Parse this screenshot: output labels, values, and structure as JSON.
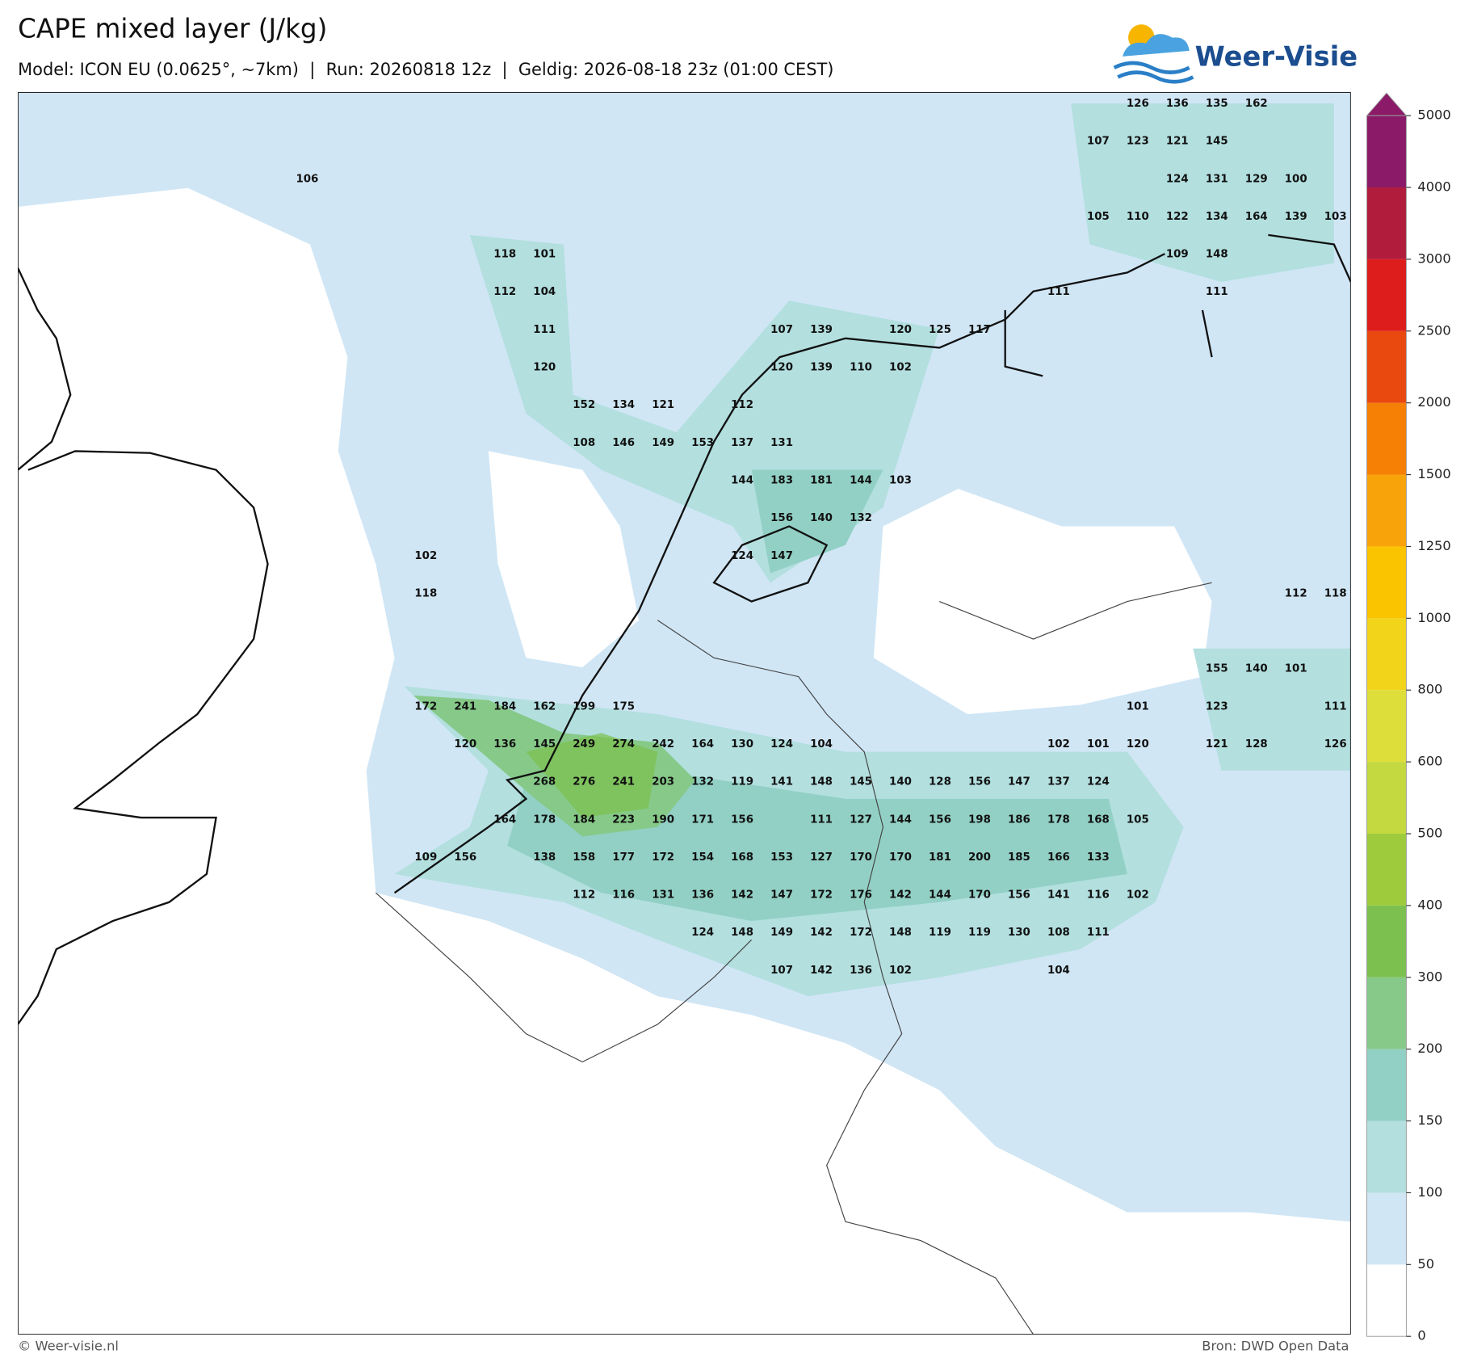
{
  "header": {
    "title": "CAPE mixed layer (J/kg)",
    "subtitle": "Model: ICON EU (0.0625°, ~7km)  |  Run: 20260818 12z  |  Geldig: 2026-08-18 23z (01:00 CEST)",
    "logo": "Weer-Visie"
  },
  "footer": {
    "left": "© Weer-visie.nl",
    "right": "Bron: DWD Open Data"
  },
  "colorbar": {
    "levels": [
      0,
      50,
      100,
      150,
      200,
      300,
      400,
      500,
      600,
      800,
      1000,
      1250,
      1500,
      2000,
      2500,
      3000,
      4000,
      5000
    ],
    "colors": [
      "#ffffff",
      "#d0e6f5",
      "#b3dfdf",
      "#92d0c5",
      "#86c988",
      "#7cc14f",
      "#9dcb3c",
      "#c3d93f",
      "#dede3a",
      "#f2d41a",
      "#fbc400",
      "#f9a30b",
      "#f67f06",
      "#e9480f",
      "#dd1c1c",
      "#b21c3c",
      "#8b1a68"
    ],
    "extend": "max"
  },
  "labels": [
    [
      null,
      null,
      null,
      null,
      null,
      null,
      null,
      null,
      null,
      null,
      null,
      null,
      null,
      null,
      null,
      null,
      null,
      null,
      null,
      null,
      null,
      126,
      136,
      135,
      162,
      null,
      null
    ],
    [
      null,
      null,
      null,
      null,
      null,
      null,
      null,
      null,
      null,
      null,
      null,
      null,
      null,
      null,
      null,
      null,
      null,
      null,
      null,
      null,
      107,
      123,
      121,
      145,
      null,
      null,
      null
    ],
    [
      106,
      null,
      null,
      null,
      null,
      null,
      null,
      null,
      null,
      null,
      null,
      null,
      null,
      null,
      null,
      null,
      null,
      null,
      null,
      null,
      null,
      null,
      124,
      131,
      129,
      100,
      null
    ],
    [
      null,
      null,
      null,
      null,
      null,
      null,
      null,
      null,
      null,
      null,
      null,
      null,
      null,
      null,
      null,
      null,
      null,
      null,
      null,
      null,
      105,
      110,
      122,
      134,
      164,
      139,
      103
    ],
    [
      null,
      null,
      null,
      null,
      null,
      118,
      101,
      null,
      null,
      null,
      null,
      null,
      null,
      null,
      null,
      null,
      null,
      null,
      null,
      null,
      null,
      null,
      109,
      148,
      null,
      null,
      null
    ],
    [
      null,
      null,
      null,
      null,
      null,
      112,
      104,
      null,
      null,
      null,
      null,
      null,
      null,
      null,
      null,
      null,
      null,
      null,
      null,
      111,
      null,
      null,
      null,
      111,
      null,
      null,
      null
    ],
    [
      null,
      null,
      null,
      null,
      null,
      null,
      111,
      null,
      null,
      null,
      null,
      null,
      107,
      139,
      null,
      120,
      125,
      117,
      null,
      null,
      null,
      null,
      null,
      null,
      null,
      null,
      null
    ],
    [
      null,
      null,
      null,
      null,
      null,
      null,
      120,
      null,
      null,
      null,
      null,
      null,
      120,
      139,
      110,
      102,
      null,
      null,
      null,
      null,
      null,
      null,
      null,
      null,
      null,
      null,
      null
    ],
    [
      null,
      null,
      null,
      null,
      null,
      null,
      null,
      152,
      134,
      121,
      null,
      112,
      null,
      null,
      null,
      null,
      null,
      null,
      null,
      null,
      null,
      null,
      null,
      null,
      null,
      null,
      null
    ],
    [
      null,
      null,
      null,
      null,
      null,
      null,
      null,
      108,
      146,
      149,
      153,
      137,
      131,
      null,
      null,
      null,
      null,
      null,
      null,
      null,
      null,
      null,
      null,
      null,
      null,
      null,
      null
    ],
    [
      null,
      null,
      null,
      null,
      null,
      null,
      null,
      null,
      null,
      null,
      null,
      144,
      183,
      181,
      144,
      103,
      null,
      null,
      null,
      null,
      null,
      null,
      null,
      null,
      null,
      null,
      null
    ],
    [
      null,
      null,
      null,
      null,
      null,
      null,
      null,
      null,
      null,
      null,
      null,
      null,
      156,
      140,
      132,
      null,
      null,
      null,
      null,
      null,
      null,
      null,
      null,
      null,
      null,
      null,
      null
    ],
    [
      null,
      null,
      null,
      102,
      null,
      null,
      null,
      null,
      null,
      null,
      null,
      124,
      147,
      null,
      null,
      null,
      null,
      null,
      null,
      null,
      null,
      null,
      null,
      null,
      null,
      null,
      null
    ],
    [
      null,
      null,
      null,
      118,
      null,
      null,
      null,
      null,
      null,
      null,
      null,
      null,
      null,
      null,
      null,
      null,
      null,
      null,
      null,
      null,
      null,
      null,
      null,
      null,
      null,
      112,
      118
    ],
    [
      null,
      null,
      null,
      null,
      null,
      null,
      null,
      null,
      null,
      null,
      null,
      null,
      null,
      null,
      null,
      null,
      null,
      null,
      null,
      null,
      null,
      null,
      null,
      null,
      null,
      null,
      null
    ],
    [
      null,
      null,
      null,
      null,
      null,
      null,
      null,
      null,
      null,
      null,
      null,
      null,
      null,
      null,
      null,
      null,
      null,
      null,
      null,
      null,
      null,
      null,
      null,
      155,
      140,
      101,
      null
    ],
    [
      null,
      null,
      null,
      172,
      241,
      184,
      162,
      199,
      175,
      null,
      null,
      null,
      null,
      null,
      null,
      null,
      null,
      null,
      null,
      null,
      null,
      101,
      null,
      123,
      null,
      null,
      111
    ],
    [
      null,
      null,
      null,
      null,
      120,
      136,
      145,
      249,
      274,
      242,
      164,
      130,
      124,
      104,
      null,
      null,
      null,
      null,
      null,
      102,
      101,
      120,
      null,
      121,
      128,
      null,
      126
    ],
    [
      null,
      null,
      null,
      null,
      null,
      null,
      268,
      276,
      241,
      203,
      132,
      119,
      141,
      148,
      145,
      140,
      128,
      156,
      147,
      137,
      124,
      null,
      null,
      null,
      null,
      null,
      null
    ],
    [
      null,
      null,
      null,
      null,
      null,
      164,
      178,
      184,
      223,
      190,
      171,
      156,
      null,
      111,
      127,
      144,
      156,
      198,
      186,
      178,
      168,
      105,
      null,
      null,
      null,
      null,
      null
    ],
    [
      null,
      null,
      null,
      109,
      156,
      null,
      138,
      158,
      177,
      172,
      154,
      168,
      153,
      127,
      170,
      170,
      181,
      200,
      185,
      166,
      133,
      null,
      null,
      null,
      null,
      null,
      null
    ],
    [
      null,
      null,
      null,
      null,
      null,
      null,
      null,
      112,
      116,
      131,
      136,
      142,
      147,
      172,
      176,
      142,
      144,
      170,
      156,
      141,
      116,
      102,
      null,
      null,
      null,
      null,
      null
    ],
    [
      null,
      null,
      null,
      null,
      null,
      null,
      null,
      null,
      null,
      null,
      124,
      148,
      149,
      142,
      172,
      148,
      119,
      119,
      130,
      108,
      111,
      null,
      null,
      null,
      null,
      null,
      null
    ],
    [
      null,
      null,
      null,
      null,
      null,
      null,
      null,
      null,
      null,
      null,
      null,
      null,
      107,
      142,
      136,
      102,
      null,
      null,
      null,
      104,
      null,
      null,
      null,
      null,
      null,
      null,
      null
    ]
  ]
}
